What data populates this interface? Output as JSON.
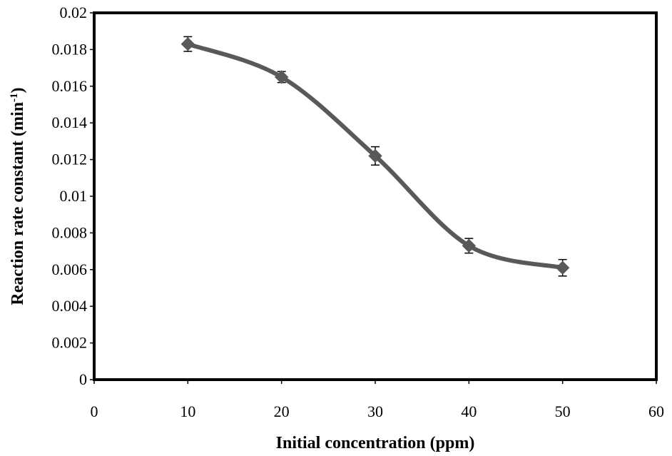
{
  "chart_data": {
    "type": "line",
    "title": "",
    "xlabel": "Initial concentration (ppm)",
    "ylabel": "Reaction rate constant (min-1)",
    "ylabel_base": "Reaction rate constant (min",
    "ylabel_sup": "-1",
    "ylabel_end": ")",
    "xlim": [
      0,
      60
    ],
    "ylim": [
      0,
      0.02
    ],
    "xticks": [
      "0",
      "10",
      "20",
      "30",
      "40",
      "50",
      "60"
    ],
    "yticks": [
      "0",
      "0.002",
      "0.004",
      "0.006",
      "0.008",
      "0.01",
      "0.012",
      "0.014",
      "0.016",
      "0.018",
      "0.02"
    ],
    "grid": false,
    "legend": "none",
    "series": [
      {
        "x": [
          10,
          20,
          30,
          40,
          50
        ],
        "y": [
          0.0183,
          0.0165,
          0.0122,
          0.0073,
          0.0061
        ],
        "error": [
          0.0004,
          0.0003,
          0.0005,
          0.0004,
          0.00045
        ],
        "marker": "diamond",
        "smooth": true,
        "color": "#595959"
      }
    ]
  }
}
